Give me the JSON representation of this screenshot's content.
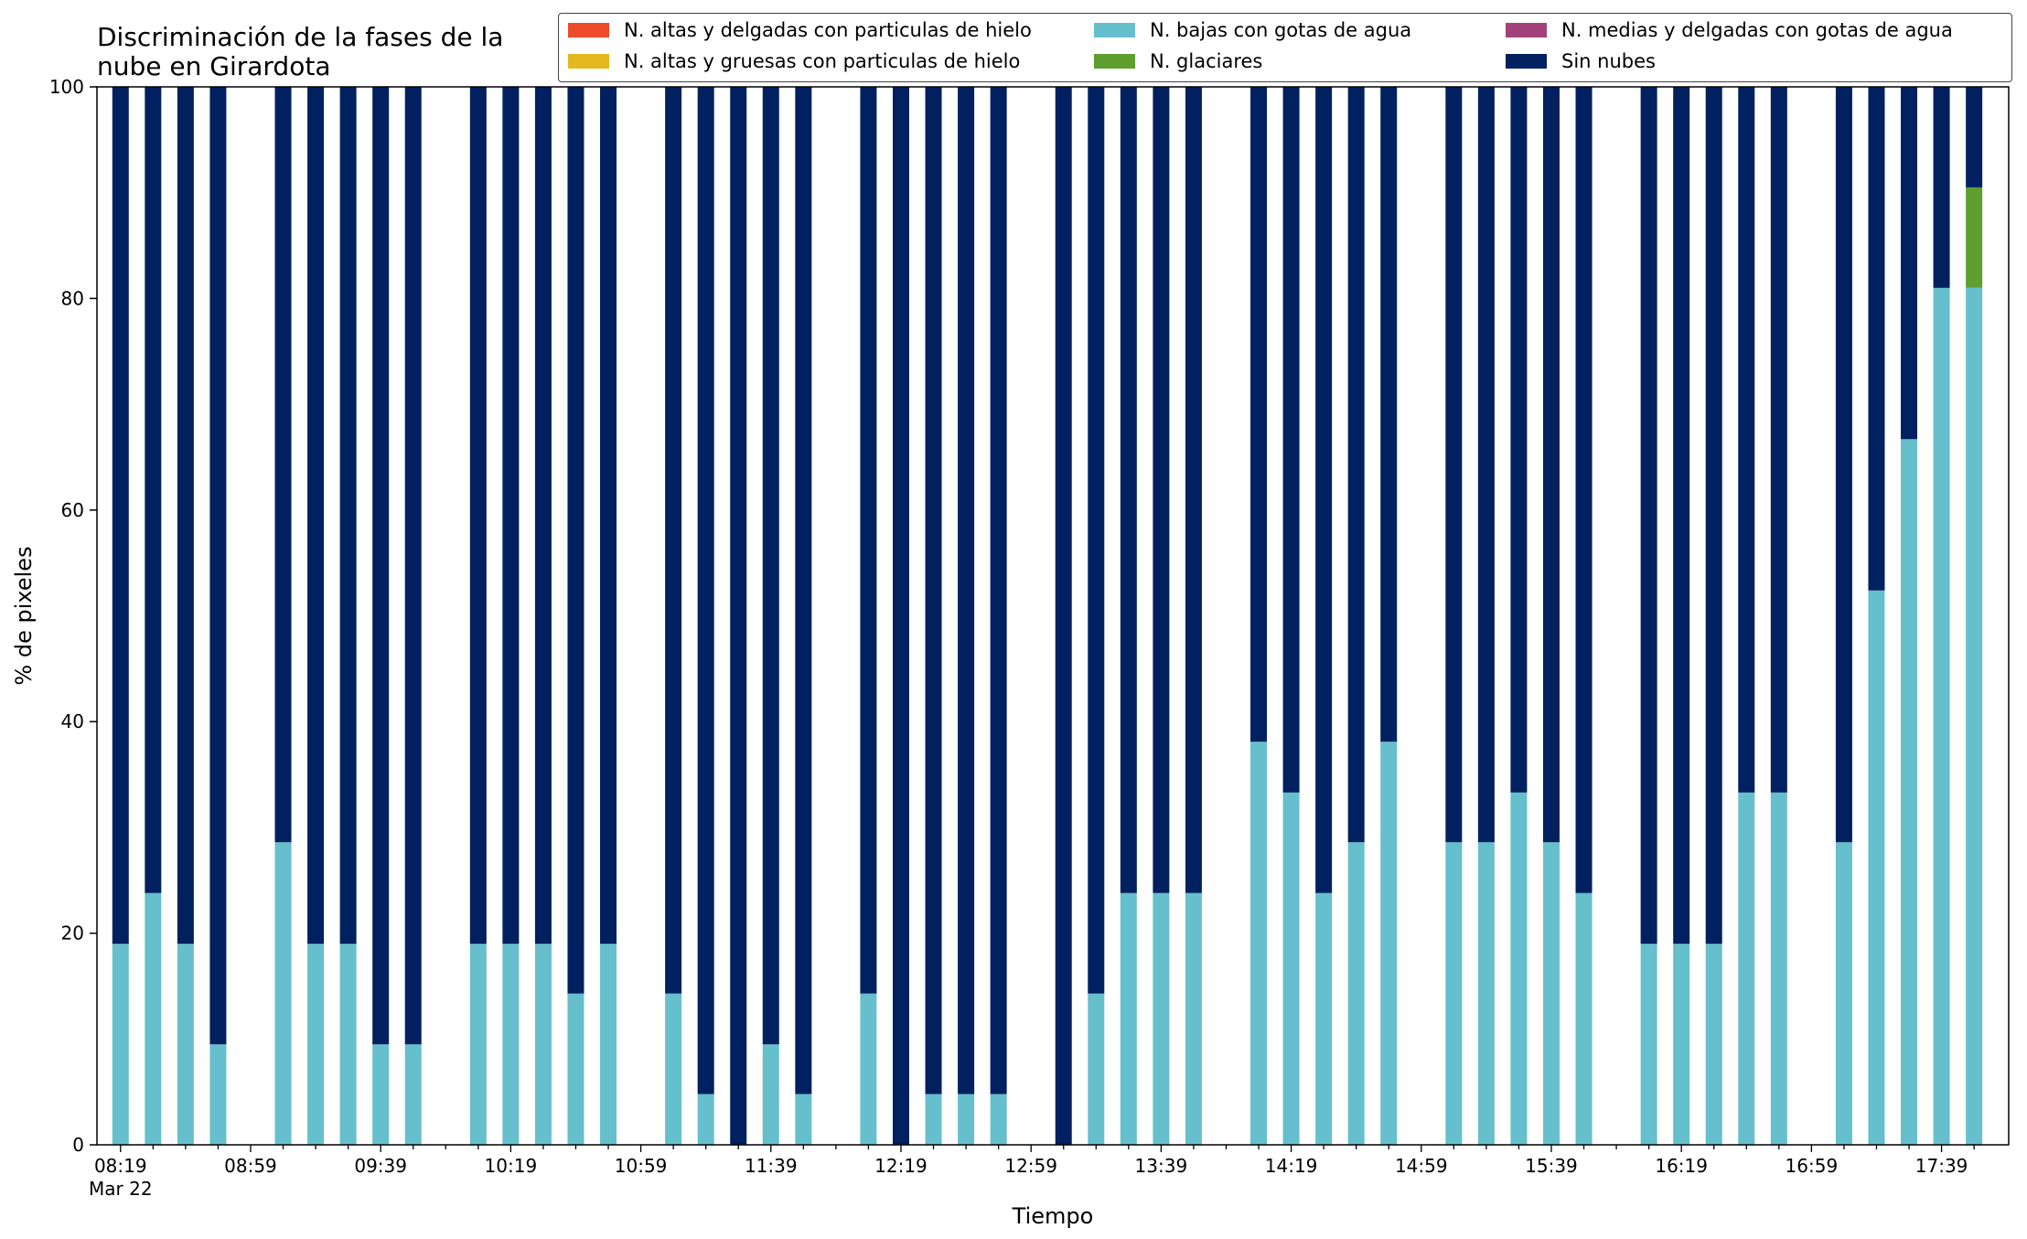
{
  "chart_data": {
    "type": "bar",
    "stacked": true,
    "title": "Discriminación de la fases de la\nnube en Girardota",
    "xlabel": "Tiempo",
    "ylabel": "% de pixeles",
    "ylim": [
      0,
      100
    ],
    "yticks": [
      0,
      20,
      40,
      60,
      80,
      100
    ],
    "xtick_labels": [
      "08:19",
      "08:59",
      "09:39",
      "10:19",
      "10:59",
      "11:39",
      "12:19",
      "12:59",
      "13:39",
      "14:19",
      "14:59",
      "15:39",
      "16:19",
      "16:59",
      "17:39"
    ],
    "xtick_sublabel": "Mar 22",
    "grid": false,
    "legend_position": "top-right",
    "x": [
      "08:19",
      "08:29",
      "08:39",
      "08:49",
      "08:59",
      "09:09",
      "09:19",
      "09:29",
      "09:39",
      "09:49",
      "09:59",
      "10:09",
      "10:19",
      "10:29",
      "10:39",
      "10:49",
      "10:59",
      "11:09",
      "11:19",
      "11:29",
      "11:39",
      "11:49",
      "11:59",
      "12:09",
      "12:19",
      "12:29",
      "12:39",
      "12:49",
      "12:59",
      "13:09",
      "13:19",
      "13:29",
      "13:39",
      "13:49",
      "13:59",
      "14:09",
      "14:19",
      "14:29",
      "14:39",
      "14:49",
      "14:59",
      "15:09",
      "15:19",
      "15:29",
      "15:39",
      "15:49",
      "15:59",
      "16:09",
      "16:19",
      "16:29",
      "16:39",
      "16:49",
      "16:59",
      "17:09",
      "17:19",
      "17:29",
      "17:39",
      "17:49"
    ],
    "series": [
      {
        "name": "N. altas y delgadas con particulas de hielo",
        "color": "#EE4B2B",
        "values": [
          0,
          0,
          0,
          0,
          null,
          0,
          0,
          0,
          0,
          0,
          null,
          0,
          0,
          0,
          0,
          0,
          null,
          0,
          0,
          0,
          0,
          0,
          null,
          0,
          0,
          0,
          0,
          0,
          null,
          0,
          0,
          0,
          0,
          0,
          null,
          0,
          0,
          0,
          0,
          0,
          null,
          0,
          0,
          0,
          0,
          0,
          null,
          0,
          0,
          0,
          0,
          0,
          null,
          0,
          0,
          0,
          0,
          0
        ]
      },
      {
        "name": "N. altas y gruesas con particulas de hielo",
        "color": "#E6B820",
        "values": [
          0,
          0,
          0,
          0,
          null,
          0,
          0,
          0,
          0,
          0,
          null,
          0,
          0,
          0,
          0,
          0,
          null,
          0,
          0,
          0,
          0,
          0,
          null,
          0,
          0,
          0,
          0,
          0,
          null,
          0,
          0,
          0,
          0,
          0,
          null,
          0,
          0,
          0,
          0,
          0,
          null,
          0,
          0,
          0,
          0,
          0,
          null,
          0,
          0,
          0,
          0,
          0,
          null,
          0,
          0,
          0,
          0,
          0
        ]
      },
      {
        "name": "N. bajas con gotas de agua",
        "color": "#66BFCC",
        "values": [
          19,
          23.8,
          19,
          9.5,
          null,
          28.6,
          19,
          19,
          9.5,
          9.5,
          null,
          19,
          19,
          19,
          14.3,
          19,
          null,
          14.3,
          4.8,
          0,
          9.5,
          4.8,
          null,
          14.3,
          0,
          4.8,
          4.8,
          4.8,
          null,
          0,
          14.3,
          23.8,
          23.8,
          23.8,
          null,
          38.1,
          33.3,
          23.8,
          28.6,
          38.1,
          null,
          28.6,
          28.6,
          33.3,
          28.6,
          23.8,
          null,
          19,
          19,
          19,
          33.3,
          33.3,
          null,
          28.6,
          52.4,
          66.7,
          81,
          81
        ]
      },
      {
        "name": "N. glaciares",
        "color": "#5E9F2F",
        "values": [
          0,
          0,
          0,
          0,
          null,
          0,
          0,
          0,
          0,
          0,
          null,
          0,
          0,
          0,
          0,
          0,
          null,
          0,
          0,
          0,
          0,
          0,
          null,
          0,
          0,
          0,
          0,
          0,
          null,
          0,
          0,
          0,
          0,
          0,
          null,
          0,
          0,
          0,
          0,
          0,
          null,
          0,
          0,
          0,
          0,
          0,
          null,
          0,
          0,
          0,
          0,
          0,
          null,
          0,
          0,
          0,
          0,
          9.5
        ]
      },
      {
        "name": "N. medias y delgadas con gotas de agua",
        "color": "#A3427A",
        "values": [
          0,
          0,
          0,
          0,
          null,
          0,
          0,
          0,
          0,
          0,
          null,
          0,
          0,
          0,
          0,
          0,
          null,
          0,
          0,
          0,
          0,
          0,
          null,
          0,
          0,
          0,
          0,
          0,
          null,
          0,
          0,
          0,
          0,
          0,
          null,
          0,
          0,
          0,
          0,
          0,
          null,
          0,
          0,
          0,
          0,
          0,
          null,
          0,
          0,
          0,
          0,
          0,
          null,
          0,
          0,
          0,
          0,
          0
        ]
      },
      {
        "name": "Sin nubes",
        "color": "#00205F",
        "values": [
          81,
          76.2,
          81,
          90.5,
          null,
          71.4,
          81,
          81,
          90.5,
          90.5,
          null,
          81,
          81,
          81,
          85.7,
          81,
          null,
          85.7,
          95.2,
          100,
          90.5,
          95.2,
          null,
          85.7,
          100,
          95.2,
          95.2,
          95.2,
          null,
          100,
          85.7,
          76.2,
          76.2,
          76.2,
          null,
          61.9,
          66.7,
          76.2,
          71.4,
          61.9,
          null,
          71.4,
          71.4,
          66.7,
          71.4,
          76.2,
          null,
          81,
          81,
          81,
          66.7,
          66.7,
          null,
          71.4,
          47.6,
          33.3,
          19,
          9.5
        ]
      }
    ]
  }
}
